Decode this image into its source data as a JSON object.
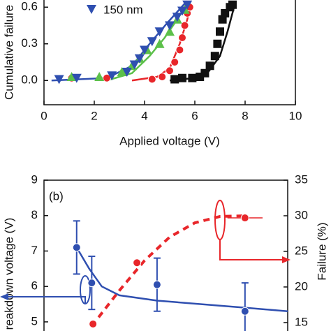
{
  "chart_data": [
    {
      "type": "scatter",
      "xlabel": "Applied voltage (V)",
      "ylabel": "Cumulative failure",
      "xlim": [
        0,
        10
      ],
      "xticks": [
        0,
        2,
        4,
        6,
        8,
        10
      ],
      "ylim": [
        -0.09,
        0.63
      ],
      "yticks": [
        {
          "value": 0,
          "label": "0.0"
        },
        0.3,
        0.6
      ],
      "series": [
        {
          "color": "#111111",
          "marker": "square",
          "x": [
            5.2,
            5.5,
            5.9,
            6.2,
            6.4,
            6.6,
            6.8,
            6.9,
            7.0,
            7.1,
            7.2,
            7.4,
            7.5
          ],
          "values": [
            0.01,
            0.02,
            0.02,
            0.03,
            0.06,
            0.12,
            0.2,
            0.3,
            0.4,
            0.5,
            0.55,
            0.6,
            0.62
          ]
        },
        {
          "color": "#e8262a",
          "marker": "circle",
          "x": [
            1.1,
            2.5,
            4.3,
            4.7,
            5.0,
            5.2,
            5.4,
            5.5,
            5.6,
            5.7,
            5.8
          ],
          "values": [
            0.02,
            0.02,
            0.01,
            0.03,
            0.08,
            0.15,
            0.25,
            0.35,
            0.45,
            0.55,
            0.6
          ]
        },
        {
          "color": "#5cc04a",
          "marker": "triangle-up",
          "x": [
            1.1,
            2.2,
            3.1,
            3.5,
            3.8,
            4.1,
            4.6,
            5.0,
            5.3,
            5.6
          ],
          "values": [
            0.03,
            0.03,
            0.07,
            0.12,
            0.18,
            0.25,
            0.3,
            0.4,
            0.5,
            0.58
          ]
        },
        {
          "name": "150 nm",
          "color": "#2f4fb0",
          "marker": "triangle-down",
          "x": [
            0.6,
            1.3,
            2.7,
            3.3,
            3.6,
            3.8,
            4.0,
            4.3,
            4.6,
            5.0,
            5.3,
            5.5,
            5.7
          ],
          "values": [
            0.01,
            0.02,
            0.04,
            0.07,
            0.13,
            0.18,
            0.25,
            0.32,
            0.4,
            0.45,
            0.52,
            0.57,
            0.62
          ]
        }
      ],
      "fits": [
        {
          "color": "#111111",
          "x": [
            5.0,
            6.0,
            6.5,
            7.0,
            7.3,
            7.6
          ],
          "values": [
            0.0,
            0.02,
            0.06,
            0.2,
            0.4,
            0.63
          ]
        },
        {
          "color": "#e8262a",
          "x": [
            3.5,
            4.5,
            5.0,
            5.4,
            5.7,
            5.85
          ],
          "values": [
            0.0,
            0.03,
            0.1,
            0.3,
            0.5,
            0.63
          ]
        },
        {
          "color": "#5cc04a",
          "x": [
            2.5,
            3.5,
            4.2,
            4.8,
            5.3,
            5.7
          ],
          "values": [
            0.0,
            0.06,
            0.2,
            0.35,
            0.5,
            0.63
          ]
        },
        {
          "color": "#2f4fb0",
          "x": [
            0.3,
            2.5,
            3.5,
            4.2,
            4.9,
            5.6
          ],
          "values": [
            0.0,
            0.02,
            0.12,
            0.3,
            0.47,
            0.63
          ]
        }
      ]
    },
    {
      "type": "scatter",
      "annotation": "(b)",
      "ylabel": "reakdown voltage (V)",
      "y2label": "Failure (%)",
      "xlim": [
        0,
        9.7
      ],
      "ylim": [
        4.9,
        9
      ],
      "yticks": [
        5,
        6,
        7,
        8,
        9
      ],
      "y2lim": [
        14.6,
        35
      ],
      "y2ticks": [
        15,
        20,
        25,
        30,
        35
      ],
      "series": [
        {
          "color": "#2f4fb0",
          "marker": "circle",
          "x": [
            1.3,
            1.9,
            4.5,
            8.0
          ],
          "values": [
            7.1,
            6.1,
            6.05,
            5.3
          ],
          "errors": [
            0.75,
            0.75,
            0.75,
            0.8
          ]
        },
        {
          "color": "#e8262a",
          "marker": "circle",
          "axis": "y2",
          "x": [
            1.95,
            3.7,
            8.0
          ],
          "values": [
            14.8,
            23.4,
            29.7
          ],
          "xerrors": [
            null,
            null,
            0.7
          ]
        }
      ],
      "fits": [
        {
          "color": "#2f4fb0",
          "x": [
            1.3,
            1.8,
            2.3,
            3.0,
            4.5,
            8.0,
            9.7
          ],
          "values": [
            7.1,
            6.5,
            6.0,
            5.75,
            5.6,
            5.4,
            5.3
          ]
        },
        {
          "color": "#e8262a",
          "dashed": true,
          "axis": "y2",
          "x": [
            1.9,
            3.0,
            4.0,
            5.0,
            6.0,
            7.0,
            8.0
          ],
          "values": [
            14.5,
            19.5,
            23.7,
            27.0,
            29.0,
            29.9,
            30.0
          ]
        }
      ]
    }
  ]
}
